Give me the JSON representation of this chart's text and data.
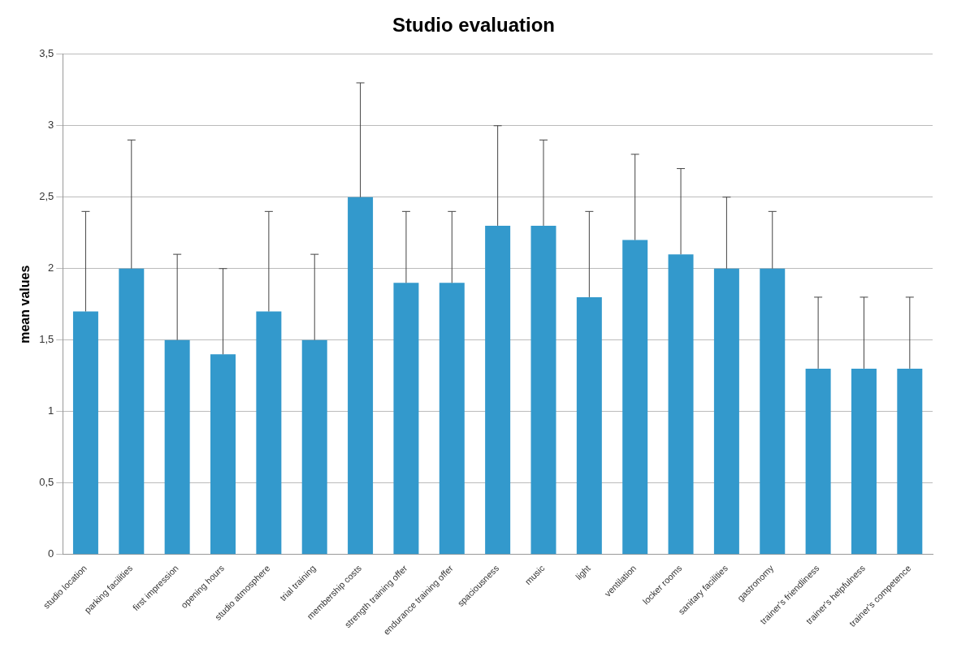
{
  "chart_data": {
    "type": "bar",
    "title": "Studio evaluation",
    "ylabel": "mean values",
    "categories": [
      "studio location",
      "parking facilities",
      "first impression",
      "opening hours",
      "studio atmosphere",
      "trial training",
      "membership costs",
      "strength training offer",
      "endurance training offer",
      "spaciousness",
      "music",
      "light",
      "ventilation",
      "locker rooms",
      "sanitary facilities",
      "gastronomy",
      "trainer's friendliness",
      "trainer's helpfulness",
      "trainer's competence"
    ],
    "values": [
      1.7,
      2.0,
      1.5,
      1.4,
      1.7,
      1.5,
      2.5,
      1.9,
      1.9,
      2.3,
      2.3,
      1.8,
      2.2,
      2.1,
      2.0,
      2.0,
      1.3,
      1.3,
      1.3
    ],
    "errors": [
      [
        1.7,
        2.4
      ],
      [
        2.0,
        2.9
      ],
      [
        1.5,
        2.1
      ],
      [
        1.4,
        2.0
      ],
      [
        1.7,
        2.4
      ],
      [
        1.5,
        2.1
      ],
      [
        2.5,
        3.3
      ],
      [
        1.9,
        2.4
      ],
      [
        1.9,
        2.4
      ],
      [
        2.3,
        3.0
      ],
      [
        2.3,
        2.9
      ],
      [
        1.8,
        2.4
      ],
      [
        2.2,
        2.8
      ],
      [
        2.1,
        2.7
      ],
      [
        2.0,
        2.5
      ],
      [
        2.0,
        2.4
      ],
      [
        1.3,
        1.8
      ],
      [
        1.3,
        1.8
      ],
      [
        1.3,
        1.8
      ]
    ],
    "color": "#3399cc",
    "ylim": [
      0,
      3.5
    ],
    "yticks": [
      0,
      {
        "value": 0.5,
        "label": "0,5"
      },
      1,
      {
        "value": 1.5,
        "label": "1,5"
      },
      2,
      {
        "value": 2.5,
        "label": "2,5"
      },
      3,
      {
        "value": 3.5,
        "label": "3,5"
      }
    ],
    "grid": "y",
    "legend": false
  }
}
